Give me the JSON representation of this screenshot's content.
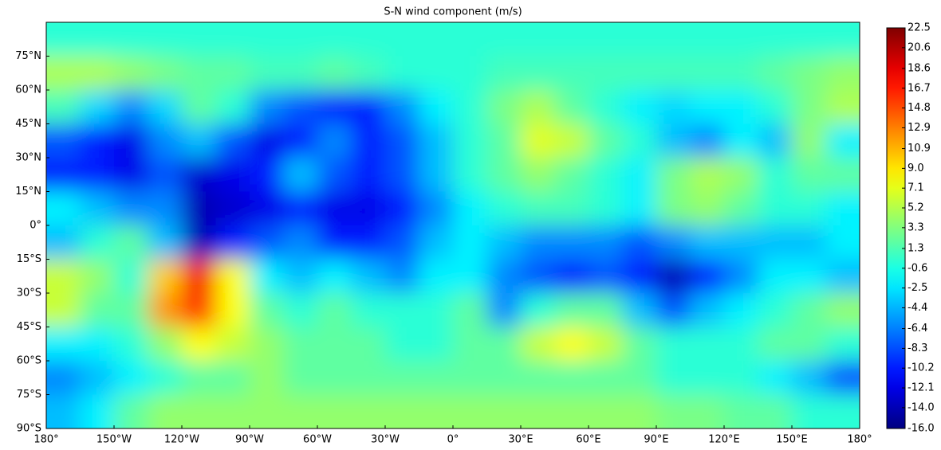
{
  "chart_data": {
    "type": "heatmap",
    "title": "S-N wind component (m/s)",
    "x": [
      -172.5,
      -157.5,
      -142.5,
      -127.5,
      -112.5,
      -97.5,
      -82.5,
      -67.5,
      -52.5,
      -37.5,
      -22.5,
      -7.5,
      7.5,
      22.5,
      37.5,
      52.5,
      67.5,
      82.5,
      97.5,
      112.5,
      127.5,
      142.5,
      157.5,
      172.5
    ],
    "y": [
      82.5,
      67.5,
      52.5,
      37.5,
      22.5,
      7.5,
      -7.5,
      -22.5,
      -37.5,
      -52.5,
      -67.5,
      -82.5
    ],
    "values": [
      [
        0,
        0,
        0,
        0,
        0,
        0,
        0,
        0,
        0,
        0,
        0,
        0,
        0,
        0,
        0,
        0,
        0,
        0,
        0,
        0,
        0,
        0,
        0,
        0
      ],
      [
        5,
        5,
        4,
        3,
        2,
        2,
        1,
        1,
        2,
        1,
        0,
        0,
        0,
        1,
        1,
        1,
        1,
        1,
        1,
        1,
        1,
        2,
        3,
        4
      ],
      [
        1,
        -3,
        -6,
        -3,
        2,
        0,
        -6,
        -8,
        -10,
        -10,
        -6,
        -2,
        0,
        3,
        5,
        2,
        0,
        -2,
        -3,
        -2,
        -2,
        0,
        3,
        5
      ],
      [
        -8,
        -10,
        -12,
        -6,
        -4,
        -8,
        -12,
        -10,
        -6,
        -10,
        -8,
        -4,
        0,
        2,
        7,
        6,
        2,
        0,
        -4,
        -6,
        -2,
        -4,
        4,
        -2
      ],
      [
        -10,
        -10,
        -12,
        -8,
        -13,
        -12,
        -10,
        -4,
        -8,
        -10,
        -8,
        -4,
        0,
        2,
        4,
        2,
        0,
        -2,
        3,
        5,
        4,
        0,
        2,
        2
      ],
      [
        -2,
        -4,
        -6,
        -6,
        -14,
        -13,
        -12,
        -10,
        -12,
        -12,
        -10,
        -6,
        -2,
        0,
        1,
        1,
        0,
        -2,
        3,
        4,
        2,
        0,
        0,
        -2
      ],
      [
        -4,
        0,
        2,
        -4,
        -14,
        -10,
        -8,
        -6,
        -10,
        -10,
        -8,
        -4,
        -2,
        -4,
        -6,
        -6,
        -6,
        -8,
        -6,
        -4,
        -4,
        -4,
        -4,
        -2
      ],
      [
        6,
        4,
        0,
        10,
        18,
        8,
        -2,
        -4,
        -2,
        -4,
        -6,
        -2,
        -2,
        -6,
        -8,
        -10,
        -8,
        -10,
        -14,
        -10,
        -6,
        -2,
        -2,
        -4
      ],
      [
        6,
        2,
        2,
        12,
        16,
        8,
        2,
        0,
        2,
        0,
        0,
        0,
        2,
        -6,
        0,
        2,
        2,
        -4,
        -8,
        -4,
        -2,
        0,
        2,
        4
      ],
      [
        -2,
        -2,
        0,
        4,
        8,
        6,
        4,
        2,
        2,
        2,
        0,
        0,
        2,
        2,
        6,
        8,
        6,
        2,
        0,
        0,
        0,
        2,
        2,
        0
      ],
      [
        -6,
        -4,
        -2,
        0,
        2,
        2,
        4,
        2,
        2,
        2,
        2,
        2,
        2,
        2,
        2,
        2,
        2,
        2,
        0,
        0,
        0,
        -2,
        -4,
        -8
      ],
      [
        -4,
        -2,
        2,
        4,
        4,
        4,
        4,
        4,
        4,
        4,
        4,
        4,
        4,
        4,
        4,
        4,
        4,
        4,
        3,
        3,
        2,
        2,
        0,
        0
      ]
    ],
    "xlim": [
      -180,
      180
    ],
    "ylim": [
      -90,
      90
    ],
    "xticks": [
      {
        "value": -180,
        "label": "180°"
      },
      {
        "value": -150,
        "label": "150°W"
      },
      {
        "value": -120,
        "label": "120°W"
      },
      {
        "value": -90,
        "label": "90°W"
      },
      {
        "value": -60,
        "label": "60°W"
      },
      {
        "value": -30,
        "label": "30°W"
      },
      {
        "value": 0,
        "label": "0°"
      },
      {
        "value": 30,
        "label": "30°E"
      },
      {
        "value": 60,
        "label": "60°E"
      },
      {
        "value": 90,
        "label": "90°E"
      },
      {
        "value": 120,
        "label": "120°E"
      },
      {
        "value": 150,
        "label": "150°E"
      },
      {
        "value": 180,
        "label": "180°"
      }
    ],
    "yticks": [
      {
        "value": -90,
        "label": "90°S"
      },
      {
        "value": -75,
        "label": "75°S"
      },
      {
        "value": -60,
        "label": "60°S"
      },
      {
        "value": -45,
        "label": "45°S"
      },
      {
        "value": -30,
        "label": "30°S"
      },
      {
        "value": -15,
        "label": "15°S"
      },
      {
        "value": 0,
        "label": "0°"
      },
      {
        "value": 15,
        "label": "15°N"
      },
      {
        "value": 30,
        "label": "30°N"
      },
      {
        "value": 45,
        "label": "45°N"
      },
      {
        "value": 60,
        "label": "60°N"
      },
      {
        "value": 75,
        "label": "75°N"
      }
    ],
    "colormap": "jet",
    "clim": [
      -16,
      22.5
    ],
    "cticks": [
      22.5,
      20.6,
      18.6,
      16.7,
      14.8,
      12.9,
      10.9,
      {
        "value": 9,
        "label": "9.0"
      },
      7.1,
      5.2,
      3.3,
      1.3,
      -0.6,
      -2.5,
      -4.4,
      -6.4,
      -8.3,
      -10.2,
      -12.1,
      {
        "value": -14,
        "label": "-14.0"
      },
      {
        "value": -16,
        "label": "-16.0"
      }
    ]
  }
}
